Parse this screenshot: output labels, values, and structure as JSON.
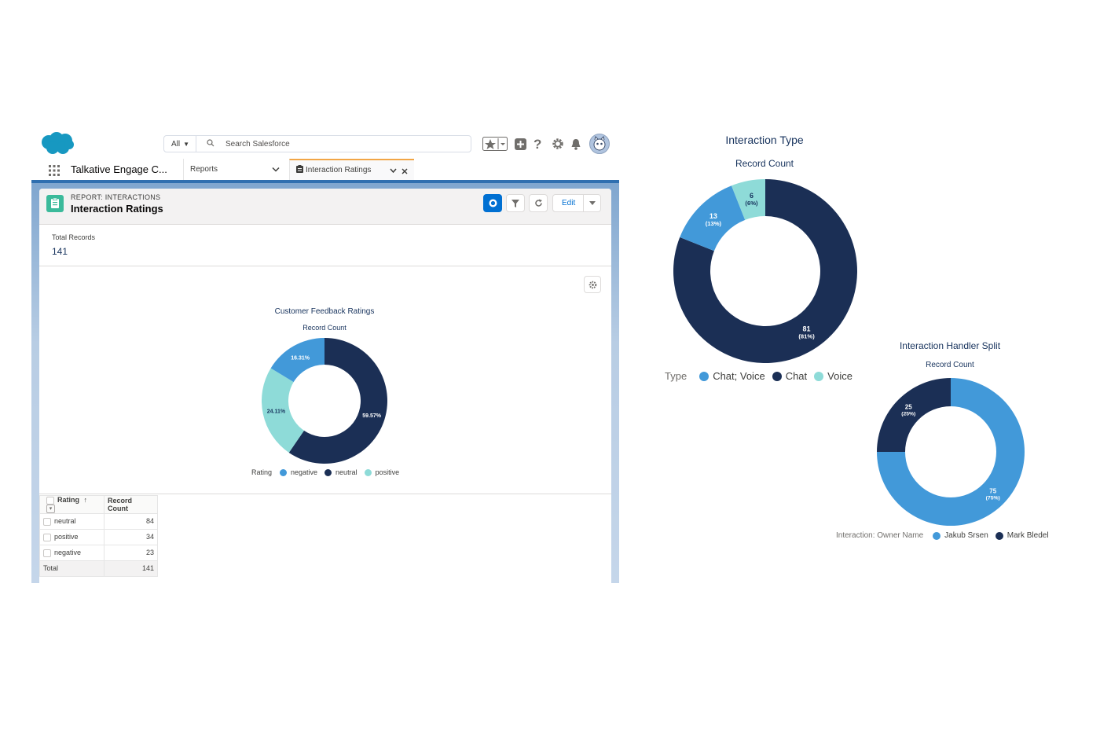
{
  "header": {
    "search_scope": "All",
    "search_placeholder": "Search Salesforce"
  },
  "nav": {
    "app_name": "Talkative Engage C...",
    "tabs": [
      {
        "label": "Reports"
      },
      {
        "label": "Interaction Ratings",
        "active": true
      }
    ]
  },
  "report": {
    "type_label": "REPORT: INTERACTIONS",
    "title": "Interaction Ratings",
    "edit_label": "Edit",
    "total_records_label": "Total Records",
    "total_records_value": "141"
  },
  "feedback_chart_text": {
    "title": "Customer Feedback Ratings",
    "subtitle": "Record Count",
    "legend_title": "Rating"
  },
  "table": {
    "headers": [
      "Rating",
      "Record Count"
    ],
    "sort_indicator": "↑",
    "rows": [
      {
        "label": "neutral",
        "value": "84"
      },
      {
        "label": "positive",
        "value": "34"
      },
      {
        "label": "negative",
        "value": "23"
      }
    ],
    "total": {
      "label": "Total",
      "value": "141"
    }
  },
  "type_chart_text": {
    "title": "Interaction Type",
    "subtitle": "Record Count",
    "legend_title": "Type"
  },
  "handler_chart_text": {
    "title": "Interaction Handler Split",
    "subtitle": "Record Count",
    "legend_title": "Interaction: Owner Name"
  },
  "chart_data": [
    {
      "type": "pie",
      "title": "Customer Feedback Ratings",
      "subtitle": "Record Count",
      "legend_title": "Rating",
      "legend_position": "bottom",
      "slices": [
        {
          "name": "negative",
          "value": 23,
          "label": "16.31%",
          "color": "#4299d9"
        },
        {
          "name": "neutral",
          "value": 84,
          "label": "59.57%",
          "color": "#1b2f55"
        },
        {
          "name": "positive",
          "value": 34,
          "label": "24.11%",
          "color": "#8edbd8"
        }
      ],
      "slice_order": [
        "neutral",
        "positive",
        "negative"
      ]
    },
    {
      "type": "pie",
      "title": "Interaction Type",
      "subtitle": "Record Count",
      "legend_title": "Type",
      "legend_position": "bottom",
      "slices": [
        {
          "name": "Chat; Voice",
          "value": 13,
          "label": "13",
          "sublabel": "(13%)",
          "color": "#4299d9"
        },
        {
          "name": "Chat",
          "value": 81,
          "label": "81",
          "sublabel": "(81%)",
          "color": "#1b2f55"
        },
        {
          "name": "Voice",
          "value": 6,
          "label": "6",
          "sublabel": "(6%)",
          "color": "#8edbd8"
        }
      ],
      "slice_order": [
        "Chat",
        "Chat; Voice",
        "Voice"
      ]
    },
    {
      "type": "pie",
      "title": "Interaction Handler Split",
      "subtitle": "Record Count",
      "legend_title": "Interaction: Owner Name",
      "legend_position": "bottom",
      "slices": [
        {
          "name": "Jakub Srsen",
          "value": 75,
          "label": "75",
          "sublabel": "(75%)",
          "color": "#4299d9"
        },
        {
          "name": "Mark Bledel",
          "value": 25,
          "label": "25",
          "sublabel": "(25%)",
          "color": "#1b2f55"
        }
      ],
      "slice_order": [
        "Jakub Srsen",
        "Mark Bledel"
      ]
    }
  ]
}
